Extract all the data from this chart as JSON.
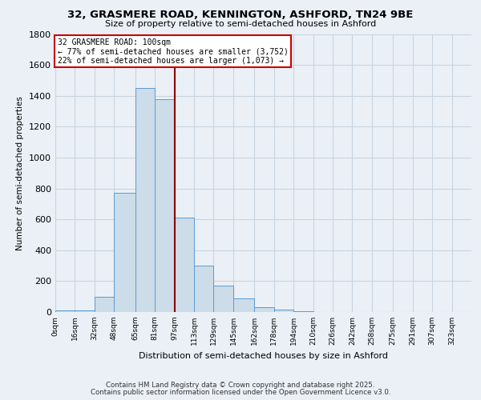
{
  "title": "32, GRASMERE ROAD, KENNINGTON, ASHFORD, TN24 9BE",
  "subtitle": "Size of property relative to semi-detached houses in Ashford",
  "xlabel": "Distribution of semi-detached houses by size in Ashford",
  "ylabel": "Number of semi-detached properties",
  "bin_labels": [
    "0sqm",
    "16sqm",
    "32sqm",
    "48sqm",
    "65sqm",
    "81sqm",
    "97sqm",
    "113sqm",
    "129sqm",
    "145sqm",
    "162sqm",
    "178sqm",
    "194sqm",
    "210sqm",
    "226sqm",
    "242sqm",
    "258sqm",
    "275sqm",
    "291sqm",
    "307sqm",
    "323sqm"
  ],
  "bin_edges": [
    0,
    16,
    32,
    48,
    65,
    81,
    97,
    113,
    129,
    145,
    162,
    178,
    194,
    210,
    226,
    242,
    258,
    275,
    291,
    307,
    323,
    339
  ],
  "bar_heights": [
    10,
    10,
    100,
    770,
    1450,
    1380,
    610,
    300,
    170,
    90,
    30,
    15,
    5,
    2,
    1,
    1,
    0,
    0,
    0,
    0,
    0
  ],
  "bar_color": "#ccdce8",
  "bar_edge_color": "#5b9bd5",
  "grid_color": "#c8d4e0",
  "background_color": "#eaf0f6",
  "vline_x": 97,
  "vline_color": "#8b0000",
  "annotation_title": "32 GRASMERE ROAD: 100sqm",
  "annotation_line1": "← 77% of semi-detached houses are smaller (3,752)",
  "annotation_line2": "22% of semi-detached houses are larger (1,073) →",
  "annotation_box_color": "#ffffff",
  "annotation_box_edge": "#cc0000",
  "ylim": [
    0,
    1800
  ],
  "yticks": [
    0,
    200,
    400,
    600,
    800,
    1000,
    1200,
    1400,
    1600,
    1800
  ],
  "footer1": "Contains HM Land Registry data © Crown copyright and database right 2025.",
  "footer2": "Contains public sector information licensed under the Open Government Licence v3.0."
}
